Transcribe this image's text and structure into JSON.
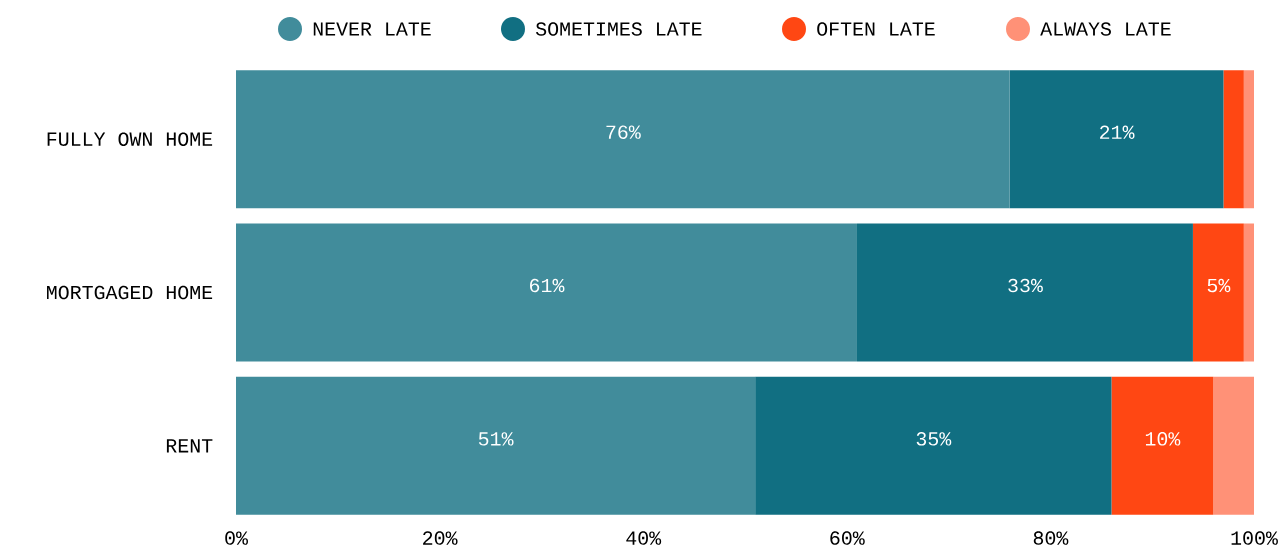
{
  "chart_data": {
    "type": "bar",
    "orientation": "horizontal",
    "stacked": true,
    "categories": [
      "FULLY OWN HOME",
      "MORTGAGED HOME",
      "RENT"
    ],
    "series": [
      {
        "name": "NEVER LATE",
        "color": "#418c9b",
        "values": [
          76,
          61,
          51
        ],
        "value_labels": [
          "76%",
          "61%",
          "51%"
        ]
      },
      {
        "name": "SOMETIMES LATE",
        "color": "#116f82",
        "values": [
          21,
          33,
          35
        ],
        "value_labels": [
          "21%",
          "33%",
          "35%"
        ]
      },
      {
        "name": "OFTEN LATE",
        "color": "#ff4713",
        "values": [
          2,
          5,
          10
        ],
        "value_labels": [
          null,
          "5%",
          "10%"
        ]
      },
      {
        "name": "ALWAYS LATE",
        "color": "#ff9177",
        "values": [
          1,
          1,
          4
        ],
        "value_labels": [
          null,
          null,
          null
        ]
      }
    ],
    "xlim": [
      0,
      100
    ],
    "xticks": [
      {
        "value": 0,
        "label": "0%"
      },
      {
        "value": 20,
        "label": "20%"
      },
      {
        "value": 40,
        "label": "40%"
      },
      {
        "value": 60,
        "label": "60%"
      },
      {
        "value": 80,
        "label": "80%"
      },
      {
        "value": 100,
        "label": "100%"
      }
    ],
    "legend": "top",
    "grid": false
  }
}
